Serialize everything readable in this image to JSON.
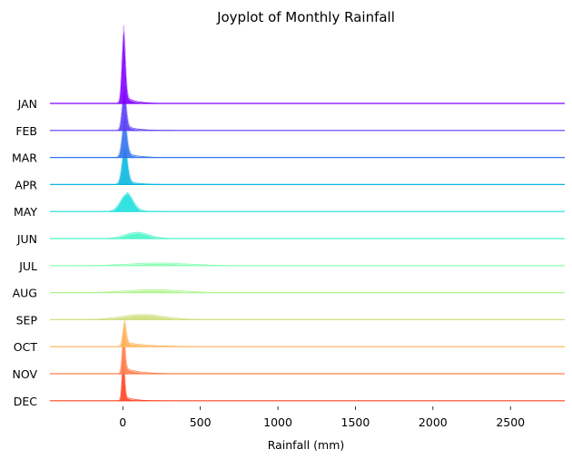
{
  "chart_data": {
    "type": "area",
    "subtype": "joyplot",
    "title": "Joyplot of Monthly Rainfall",
    "xlabel": "Rainfall (mm)",
    "ylabel": "",
    "xlim": [
      -470,
      2850
    ],
    "x_ticks": [
      0,
      500,
      1000,
      1500,
      2000,
      2500
    ],
    "x_tick_labels": [
      "0",
      "500",
      "1000",
      "1500",
      "2000",
      "2500"
    ],
    "grid": false,
    "legend": "none",
    "series": [
      {
        "name": "JAN",
        "color": "#8000ff",
        "peak_x": 5,
        "width": 12,
        "height": 1.6,
        "tail": 0.12,
        "tail_scale": 60
      },
      {
        "name": "FEB",
        "color": "#5a3ef5",
        "peak_x": 8,
        "width": 14,
        "height": 0.9,
        "tail": 0.14,
        "tail_scale": 70
      },
      {
        "name": "MAR",
        "color": "#3473ec",
        "peak_x": 10,
        "width": 16,
        "height": 0.85,
        "tail": 0.15,
        "tail_scale": 70
      },
      {
        "name": "APR",
        "color": "#0bb8e0",
        "peak_x": 12,
        "width": 18,
        "height": 0.85,
        "tail": 0.12,
        "tail_scale": 70
      },
      {
        "name": "MAY",
        "color": "#1ee0dc",
        "peak_x": 25,
        "width": 40,
        "height": 0.4,
        "tail": 0.1,
        "tail_scale": 80
      },
      {
        "name": "JUN",
        "color": "#4cf5c8",
        "peak_x": 90,
        "width": 75,
        "height": 0.14,
        "tail": 0.05,
        "tail_scale": 400
      },
      {
        "name": "JUL",
        "color": "#85ffb0",
        "peak_x": 230,
        "width": 190,
        "height": 0.06,
        "tail": 0.0,
        "tail_scale": 300
      },
      {
        "name": "AUG",
        "color": "#b0f590",
        "peak_x": 200,
        "width": 180,
        "height": 0.07,
        "tail": 0.0,
        "tail_scale": 300
      },
      {
        "name": "SEP",
        "color": "#cfe080",
        "peak_x": 130,
        "width": 140,
        "height": 0.12,
        "tail": 0.0,
        "tail_scale": 300
      },
      {
        "name": "OCT",
        "color": "#ffb45c",
        "peak_x": 10,
        "width": 12,
        "height": 0.55,
        "tail": 0.2,
        "tail_scale": 140
      },
      {
        "name": "NOV",
        "color": "#ff7f4e",
        "peak_x": 5,
        "width": 10,
        "height": 1.0,
        "tail": 0.15,
        "tail_scale": 90
      },
      {
        "name": "DEC",
        "color": "#ff4422",
        "peak_x": 3,
        "width": 9,
        "height": 1.1,
        "tail": 0.1,
        "tail_scale": 60
      }
    ]
  }
}
